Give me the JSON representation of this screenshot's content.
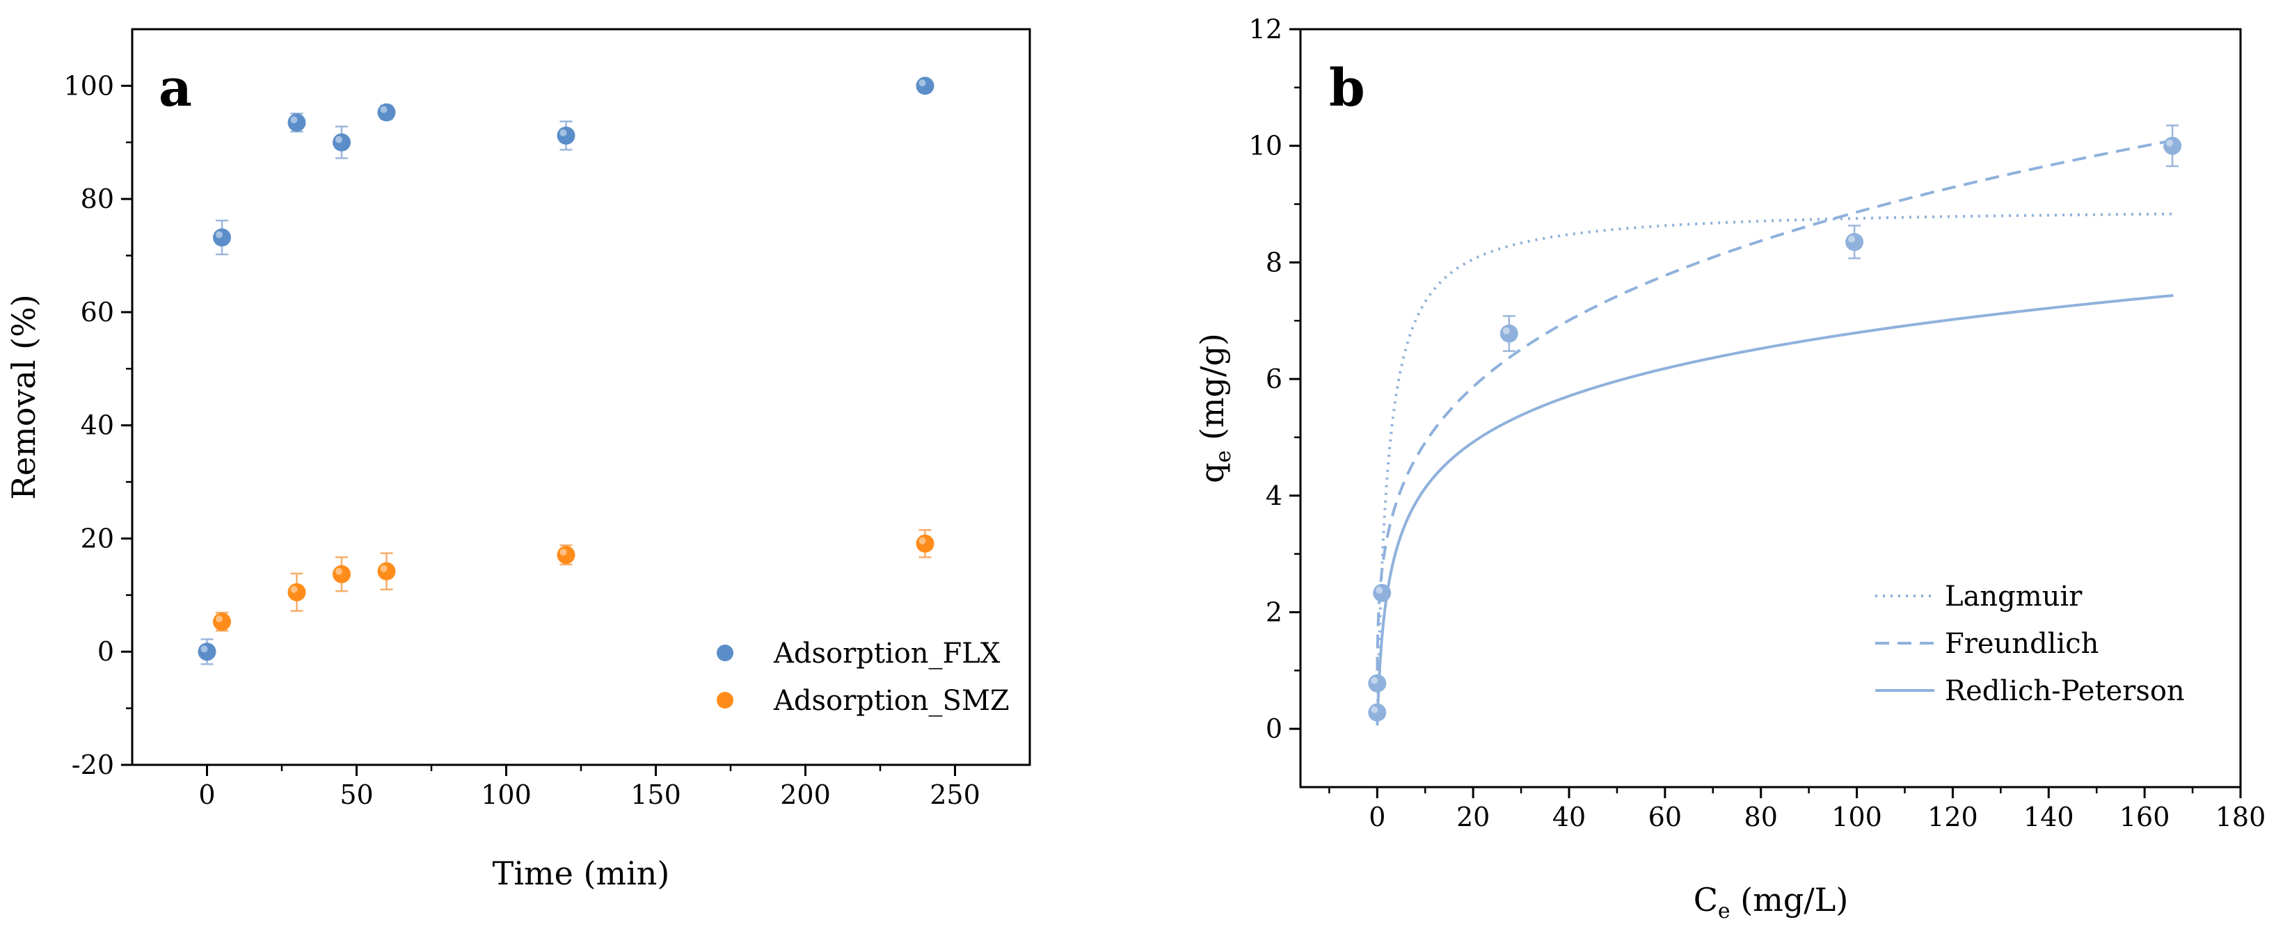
{
  "colors": {
    "flx": "#5b8ec9",
    "smz": "#ff8c1a",
    "fit": "#8fb1dc",
    "error": "#9ab6da",
    "error_smz": "#f6ad6a",
    "axis": "#000000"
  },
  "chart_data": [
    {
      "panel": "a",
      "type": "scatter",
      "xlabel": "Time (min)",
      "ylabel": "Removal (%)",
      "xlim": [
        -25,
        275
      ],
      "ylim": [
        -20,
        110
      ],
      "xticks": [
        0,
        50,
        100,
        150,
        200,
        250
      ],
      "yticks": [
        -20,
        0,
        20,
        40,
        60,
        80,
        100
      ],
      "xtick_labels": [
        "0",
        "50",
        "100",
        "150",
        "200",
        "250"
      ],
      "ytick_labels": [
        "-20",
        "0",
        "20",
        "40",
        "60",
        "80",
        "100"
      ],
      "legend_position": "bottom-right",
      "series": [
        {
          "name": "Adsorption_FLX",
          "color_key": "flx",
          "points": [
            {
              "x": 0,
              "y": 0,
              "err": 2.2
            },
            {
              "x": 5,
              "y": 73.2,
              "err": 3.0
            },
            {
              "x": 30,
              "y": 93.5,
              "err": 1.6
            },
            {
              "x": 45,
              "y": 90,
              "err": 2.8
            },
            {
              "x": 60,
              "y": 95.3,
              "err": 1.2
            },
            {
              "x": 120,
              "y": 91.2,
              "err": 2.5
            },
            {
              "x": 240,
              "y": 100,
              "err": 0.6
            }
          ]
        },
        {
          "name": "Adsorption_SMZ",
          "color_key": "smz",
          "points": [
            {
              "x": 5,
              "y": 5.3,
              "err": 1.6
            },
            {
              "x": 30,
              "y": 10.5,
              "err": 3.3
            },
            {
              "x": 45,
              "y": 13.7,
              "err": 3.0
            },
            {
              "x": 60,
              "y": 14.2,
              "err": 3.2
            },
            {
              "x": 120,
              "y": 17.1,
              "err": 1.7
            },
            {
              "x": 240,
              "y": 19.1,
              "err": 2.4
            }
          ]
        }
      ]
    },
    {
      "panel": "b",
      "type": "scatter",
      "xlabel_main": "C",
      "xlabel_sub": "e",
      "xlabel_rest": " (mg/L)",
      "ylabel_main": "q",
      "ylabel_sub": "e",
      "ylabel_rest": " (mg/g)",
      "xlim": [
        -16,
        180
      ],
      "ylim": [
        -1,
        12
      ],
      "xticks": [
        0,
        20,
        40,
        60,
        80,
        100,
        120,
        140,
        160,
        180
      ],
      "yticks": [
        0,
        2,
        4,
        6,
        8,
        10,
        12
      ],
      "xtick_labels": [
        "0",
        "20",
        "40",
        "60",
        "80",
        "100",
        "120",
        "140",
        "160",
        "180"
      ],
      "ytick_labels": [
        "0",
        "2",
        "4",
        "6",
        "8",
        "10",
        "12"
      ],
      "legend_position": "bottom-right",
      "points": [
        {
          "x": 0,
          "y": 0.28,
          "err": 0.05
        },
        {
          "x": 0,
          "y": 0.78,
          "err": 0.05
        },
        {
          "x": 1,
          "y": 2.33,
          "err": 0.08
        },
        {
          "x": 27.5,
          "y": 6.78,
          "err": 0.3
        },
        {
          "x": 99.5,
          "y": 8.35,
          "err": 0.28
        },
        {
          "x": 165.8,
          "y": 10.0,
          "err": 0.35
        }
      ],
      "fits": [
        {
          "name": "Langmuir",
          "dash": "dot",
          "model": "langmuir",
          "qmax": 8.95,
          "KL": 0.45,
          "x_max": 166
        },
        {
          "name": "Freundlich",
          "dash": "dash",
          "model": "freundlich",
          "KF": 2.72,
          "n_inv": 0.2565,
          "x_max": 166
        },
        {
          "name": "Redlich-Peterson",
          "dash": "solid",
          "model": "redlich-peterson",
          "KR": 3.0,
          "aR": 0.91,
          "beta": 0.838,
          "x_max": 166
        }
      ]
    }
  ]
}
